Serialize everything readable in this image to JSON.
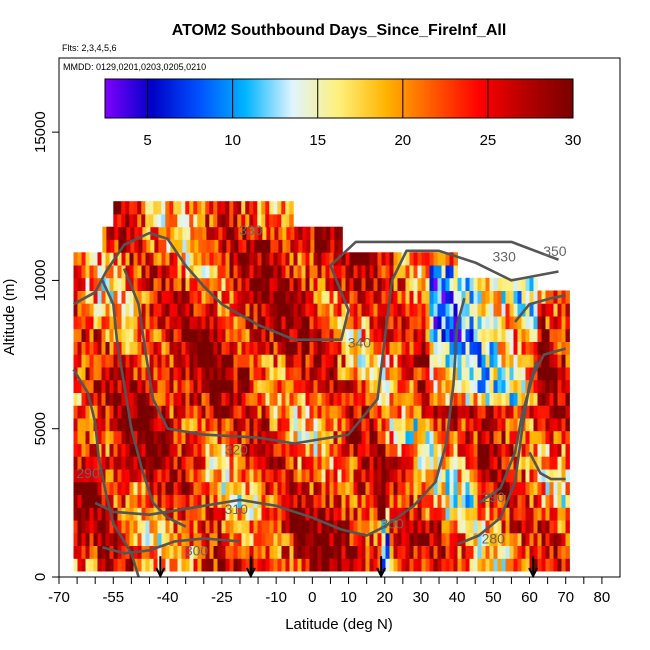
{
  "chart_data": {
    "type": "heatmap",
    "title": "ATOM2 Southbound Days_Since_FireInf_All",
    "subtitle_flights": "Flts: 2,3,4,5,6",
    "subtitle_dates": "MMDD: 0129,0201,0203,0205,0210",
    "xlabel": "Latitude (deg N)",
    "ylabel": "Altitude (m)",
    "xlim": [
      -70,
      85
    ],
    "ylim": [
      0,
      17500
    ],
    "x_ticks": [
      -70,
      -55,
      -40,
      -25,
      -10,
      0,
      10,
      20,
      30,
      40,
      50,
      60,
      70,
      80
    ],
    "x_minor_ticks": [
      -65,
      -60,
      -50,
      -45,
      -35,
      -30,
      -20,
      -15,
      -5,
      5,
      15,
      25,
      35,
      45,
      55,
      65,
      75
    ],
    "y_ticks": [
      0,
      5000,
      10000,
      15000
    ],
    "colorbar": {
      "range": [
        2.5,
        30
      ],
      "ticks": [
        5,
        10,
        15,
        20,
        25,
        30
      ],
      "colors": [
        "#7f00ff",
        "#0000c8",
        "#0050ff",
        "#00b4ff",
        "#e0f4ff",
        "#fff07a",
        "#ffb400",
        "#ff5a00",
        "#ff0000",
        "#b40000",
        "#7a0000"
      ]
    },
    "contour_labels": [
      {
        "text": "330",
        "lat": 53,
        "alt": 10800
      },
      {
        "text": "350",
        "lat": 67,
        "alt": 11000
      },
      {
        "text": "340",
        "lat": 13,
        "alt": 7900
      },
      {
        "text": "330",
        "lat": -17,
        "alt": 11700
      },
      {
        "text": "320",
        "lat": -21,
        "alt": 4300
      },
      {
        "text": "310",
        "lat": -21,
        "alt": 2300
      },
      {
        "text": "300",
        "lat": -32,
        "alt": 900
      },
      {
        "text": "300",
        "lat": 22,
        "alt": 1800
      },
      {
        "text": "290",
        "lat": 50,
        "alt": 2700
      },
      {
        "text": "280",
        "lat": 50,
        "alt": 1300
      },
      {
        "text": "290",
        "lat": -62,
        "alt": 3500
      }
    ],
    "flight_arrows_lat": [
      -42,
      -17,
      19,
      61
    ]
  }
}
